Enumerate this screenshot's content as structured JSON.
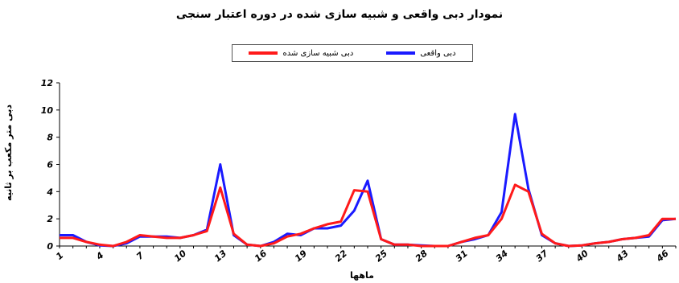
{
  "chart_data": {
    "type": "line",
    "title": "نمودار دبی واقعی و شبیه سازی شده در دوره اعتبار سنجی",
    "xlabel": "ماهها",
    "ylabel": "دبی متر مکعب بر ثانیه",
    "x": [
      1,
      2,
      3,
      4,
      5,
      6,
      7,
      8,
      9,
      10,
      11,
      12,
      13,
      14,
      15,
      16,
      17,
      18,
      19,
      20,
      21,
      22,
      23,
      24,
      25,
      26,
      27,
      28,
      29,
      30,
      31,
      32,
      33,
      34,
      35,
      36,
      37,
      38,
      39,
      40,
      41,
      42,
      43,
      44,
      45,
      46,
      47
    ],
    "x_ticks": [
      "1",
      "4",
      "7",
      "10",
      "13",
      "16",
      "19",
      "22",
      "25",
      "28",
      "31",
      "34",
      "37",
      "40",
      "43",
      "46"
    ],
    "y_ticks": [
      "0",
      "2",
      "4",
      "6",
      "8",
      "10",
      "12"
    ],
    "ylim": [
      0,
      12
    ],
    "grid": false,
    "legend_position": "top-center",
    "series": [
      {
        "name": "دبی واقعی",
        "color": "#1a1aff",
        "values": [
          0.8,
          0.8,
          0.3,
          0.05,
          0.0,
          0.2,
          0.7,
          0.7,
          0.7,
          0.6,
          0.8,
          1.2,
          6.0,
          0.8,
          0.1,
          0.0,
          0.3,
          0.9,
          0.8,
          1.3,
          1.3,
          1.5,
          2.6,
          4.8,
          0.5,
          0.1,
          0.1,
          0.05,
          0.0,
          0.0,
          0.3,
          0.5,
          0.8,
          2.5,
          9.7,
          4.2,
          0.8,
          0.2,
          0.0,
          0.05,
          0.2,
          0.3,
          0.5,
          0.6,
          0.7,
          1.9,
          2.0
        ]
      },
      {
        "name": "دبی شبیه سازی شده",
        "color": "#ff1a1a",
        "values": [
          0.6,
          0.6,
          0.3,
          0.1,
          0.0,
          0.3,
          0.8,
          0.7,
          0.6,
          0.6,
          0.8,
          1.1,
          4.3,
          0.9,
          0.1,
          0.0,
          0.2,
          0.7,
          0.9,
          1.3,
          1.6,
          1.8,
          4.1,
          4.0,
          0.5,
          0.1,
          0.1,
          0.0,
          0.0,
          0.0,
          0.3,
          0.6,
          0.8,
          2.0,
          4.5,
          4.0,
          0.9,
          0.2,
          0.0,
          0.05,
          0.2,
          0.3,
          0.5,
          0.6,
          0.8,
          2.0,
          2.0
        ]
      }
    ]
  }
}
